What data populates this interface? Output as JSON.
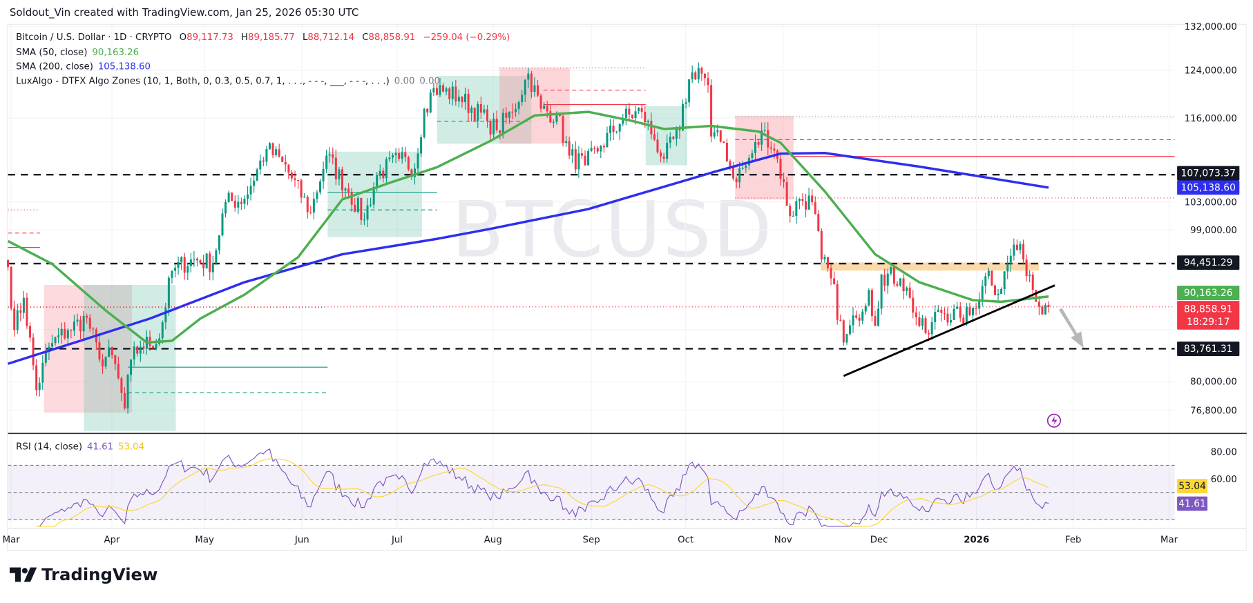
{
  "header": {
    "attribution": "Soldout_Vin created with TradingView.com, Jan 25, 2026 05:30 UTC"
  },
  "legend": {
    "symbol": "Bitcoin / U.S. Dollar · 1D · CRYPTO",
    "open_label": "O",
    "open": "89,117.73",
    "high_label": "H",
    "high": "89,185.77",
    "low_label": "L",
    "low": "88,712.14",
    "close_label": "C",
    "close": "88,858.91",
    "change": "−259.04 (−0.29%)",
    "sma50_label": "SMA (50, close)",
    "sma50_value": "90,163.26",
    "sma200_label": "SMA (200, close)",
    "sma200_value": "105,138.60",
    "luxalgo_label": "LuxAlgo - DTFX Algo Zones (10, 1, Both, 0, 0.3, 0.5, 0.7, 1, . . ., - - -, ___, - - -, . . .)",
    "luxalgo_v1": "0.00",
    "luxalgo_v2": "0.00",
    "rsi_label": "RSI (14, close)",
    "rsi_value": "41.61",
    "rsi_ma_value": "53.04"
  },
  "watermark": "BTCUSD",
  "price_axis": [
    "132,000.00",
    "124,000.00",
    "116,000.00",
    "103,000.00",
    "99,000.00",
    "80,000.00",
    "76,800.00"
  ],
  "price_tags": {
    "level_top": "107,073.37",
    "sma200": "105,138.60",
    "level_mid": "94,451.29",
    "sma50": "90,163.26",
    "last": "88,858.91",
    "countdown": "18:29:17",
    "level_bottom": "83,761.31"
  },
  "rsi_axis": [
    "80.00",
    "60.00"
  ],
  "rsi_tags": {
    "ma": "53.04",
    "rsi": "41.61"
  },
  "time_axis": [
    "Mar",
    "Apr",
    "May",
    "Jun",
    "Jul",
    "Aug",
    "Sep",
    "Oct",
    "Nov",
    "Dec",
    "2026",
    "Feb",
    "Mar"
  ],
  "brand": "TradingView",
  "colors": {
    "up": "#089981",
    "down": "#f23645",
    "sma50": "#4caf50",
    "sma200": "#2e2ef0",
    "rsi": "#7e57c2",
    "rsi_ma": "#fdd835",
    "level": "#131722",
    "supply_zone": "#f7b7bd",
    "demand_zone": "#a9dccf",
    "resistance_band": "#fcd9a8"
  },
  "chart_data": {
    "type": "candlestick",
    "title": "Bitcoin / U.S. Dollar · 1D · CRYPTO",
    "y_scale": "log",
    "ylim": [
      76000,
      132000
    ],
    "xlim": [
      "2025-03-01",
      "2026-03-01"
    ],
    "grid": true,
    "approx_closes": [
      [
        "2025-03-01",
        94000
      ],
      [
        "2025-03-03",
        86000
      ],
      [
        "2025-03-06",
        90000
      ],
      [
        "2025-03-10",
        79000
      ],
      [
        "2025-03-14",
        84000
      ],
      [
        "2025-03-20",
        86000
      ],
      [
        "2025-03-26",
        87500
      ],
      [
        "2025-03-30",
        82500
      ],
      [
        "2025-04-03",
        83000
      ],
      [
        "2025-04-07",
        77000
      ],
      [
        "2025-04-09",
        82500
      ],
      [
        "2025-04-12",
        84000
      ],
      [
        "2025-04-18",
        85000
      ],
      [
        "2025-04-22",
        93500
      ],
      [
        "2025-04-28",
        95000
      ],
      [
        "2025-05-05",
        94500
      ],
      [
        "2025-05-09",
        103000
      ],
      [
        "2025-05-15",
        103500
      ],
      [
        "2025-05-22",
        111000
      ],
      [
        "2025-05-27",
        109000
      ],
      [
        "2025-06-05",
        101500
      ],
      [
        "2025-06-10",
        110000
      ],
      [
        "2025-06-17",
        104500
      ],
      [
        "2025-06-22",
        100500
      ],
      [
        "2025-06-26",
        107000
      ],
      [
        "2025-07-03",
        109500
      ],
      [
        "2025-07-08",
        108000
      ],
      [
        "2025-07-11",
        117500
      ],
      [
        "2025-07-14",
        121000
      ],
      [
        "2025-07-22",
        119500
      ],
      [
        "2025-07-31",
        115500
      ],
      [
        "2025-08-03",
        114000
      ],
      [
        "2025-08-08",
        117000
      ],
      [
        "2025-08-13",
        123500
      ],
      [
        "2025-08-17",
        117500
      ],
      [
        "2025-08-22",
        116500
      ],
      [
        "2025-08-26",
        110000
      ],
      [
        "2025-08-31",
        108500
      ],
      [
        "2025-09-05",
        111500
      ],
      [
        "2025-09-12",
        116000
      ],
      [
        "2025-09-18",
        117000
      ],
      [
        "2025-09-22",
        112500
      ],
      [
        "2025-09-25",
        109500
      ],
      [
        "2025-09-30",
        114000
      ],
      [
        "2025-10-03",
        122500
      ],
      [
        "2025-10-06",
        124500
      ],
      [
        "2025-10-09",
        121500
      ],
      [
        "2025-10-10",
        113000
      ],
      [
        "2025-10-14",
        112000
      ],
      [
        "2025-10-17",
        106500
      ],
      [
        "2025-10-21",
        108500
      ],
      [
        "2025-10-27",
        114000
      ],
      [
        "2025-10-31",
        109500
      ],
      [
        "2025-11-04",
        101000
      ],
      [
        "2025-11-07",
        103500
      ],
      [
        "2025-11-11",
        103000
      ],
      [
        "2025-11-14",
        95000
      ],
      [
        "2025-11-17",
        92500
      ],
      [
        "2025-11-21",
        84500
      ],
      [
        "2025-11-25",
        87500
      ],
      [
        "2025-11-29",
        91000
      ],
      [
        "2025-12-01",
        86500
      ],
      [
        "2025-12-03",
        93000
      ],
      [
        "2025-12-09",
        92500
      ],
      [
        "2025-12-12",
        90000
      ],
      [
        "2025-12-15",
        86500
      ],
      [
        "2025-12-18",
        85500
      ],
      [
        "2025-12-21",
        88500
      ],
      [
        "2025-12-28",
        87500
      ],
      [
        "2025-12-31",
        87800
      ],
      [
        "2026-01-04",
        91500
      ],
      [
        "2026-01-06",
        93500
      ],
      [
        "2026-01-09",
        90500
      ],
      [
        "2026-01-13",
        95500
      ],
      [
        "2026-01-14",
        97000
      ],
      [
        "2026-01-17",
        95000
      ],
      [
        "2026-01-19",
        93000
      ],
      [
        "2026-01-21",
        89500
      ],
      [
        "2026-01-24",
        89100
      ],
      [
        "2026-01-25",
        88858.91
      ]
    ],
    "sma50": [
      [
        "2025-03-01",
        97500
      ],
      [
        "2025-03-15",
        94400
      ],
      [
        "2025-04-01",
        88400
      ],
      [
        "2025-04-14",
        84500
      ],
      [
        "2025-04-22",
        84700
      ],
      [
        "2025-05-01",
        87400
      ],
      [
        "2025-05-15",
        90400
      ],
      [
        "2025-06-01",
        95300
      ],
      [
        "2025-06-15",
        103400
      ],
      [
        "2025-07-01",
        106000
      ],
      [
        "2025-07-15",
        108200
      ],
      [
        "2025-08-01",
        112300
      ],
      [
        "2025-08-15",
        116400
      ],
      [
        "2025-09-01",
        117000
      ],
      [
        "2025-09-15",
        115500
      ],
      [
        "2025-09-25",
        114200
      ],
      [
        "2025-10-10",
        114700
      ],
      [
        "2025-10-25",
        113800
      ],
      [
        "2025-11-01",
        112000
      ],
      [
        "2025-11-15",
        104600
      ],
      [
        "2025-12-01",
        95700
      ],
      [
        "2025-12-15",
        92000
      ],
      [
        "2026-01-01",
        89700
      ],
      [
        "2026-01-10",
        89500
      ],
      [
        "2026-01-25",
        90163.26
      ]
    ],
    "sma200": [
      [
        "2025-03-01",
        82000
      ],
      [
        "2025-04-15",
        87400
      ],
      [
        "2025-05-15",
        92000
      ],
      [
        "2025-06-15",
        95700
      ],
      [
        "2025-07-15",
        97800
      ],
      [
        "2025-08-01",
        99200
      ],
      [
        "2025-09-01",
        102000
      ],
      [
        "2025-10-11",
        107500
      ],
      [
        "2025-11-01",
        110300
      ],
      [
        "2025-11-15",
        110400
      ],
      [
        "2025-12-15",
        108300
      ],
      [
        "2026-01-25",
        105138.6
      ]
    ],
    "horizontal_levels": [
      107073.37,
      94451.29,
      83761.31
    ],
    "trendline": [
      [
        "2025-11-21",
        80600
      ],
      [
        "2026-01-27",
        91600
      ]
    ],
    "rsi": {
      "period": 14,
      "last": 41.61,
      "ma_last": 53.04,
      "ylim": [
        20,
        100
      ],
      "bands": [
        70,
        50,
        30
      ]
    }
  }
}
